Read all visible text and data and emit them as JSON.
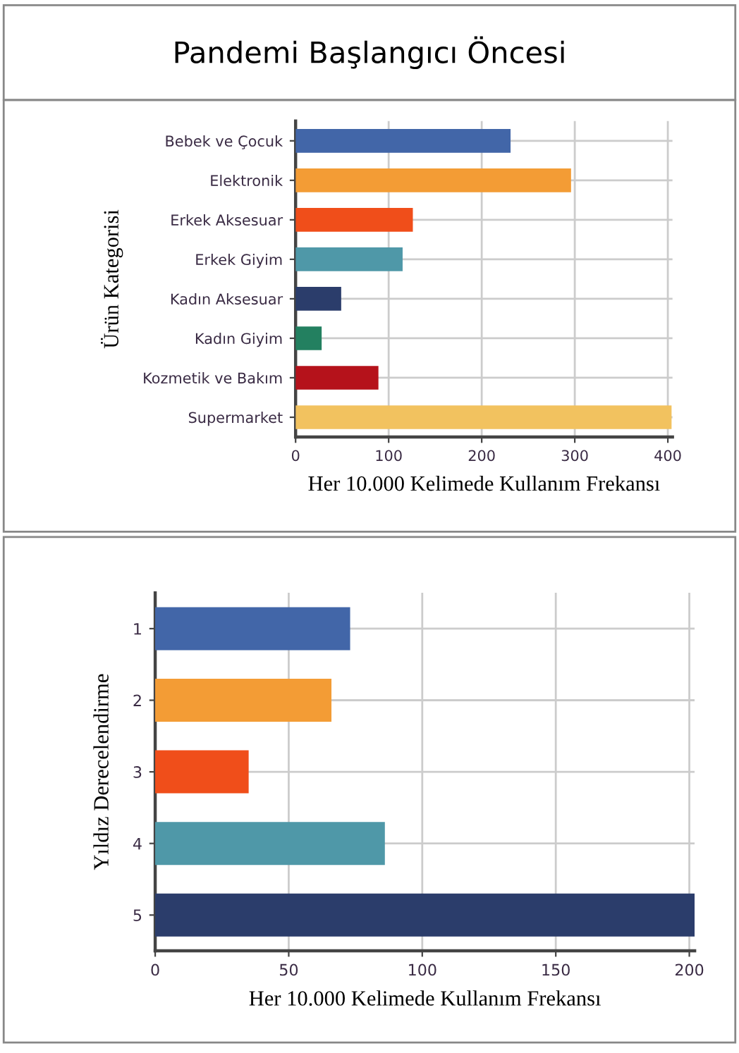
{
  "chart_data": [
    {
      "type": "bar",
      "orientation": "horizontal",
      "title": "Pandemi Başlangıcı Öncesi",
      "xlabel": "Her 10.000 Kelimede Kullanım Frekansı",
      "ylabel": "Ürün Kategorisi",
      "categories": [
        "Bebek ve Çocuk",
        "Elektronik",
        "Erkek Aksesuar",
        "Erkek Giyim",
        "Kadın Aksesuar",
        "Kadın Giyim",
        "Kozmetik ve Bakım",
        "Supermarket"
      ],
      "values": [
        231,
        296,
        126,
        115,
        49,
        28,
        89,
        404
      ],
      "colors": [
        "#4266a8",
        "#f39c35",
        "#f04e1a",
        "#4f98a8",
        "#2b3d6b",
        "#238060",
        "#b5121b",
        "#f2c25f"
      ],
      "xlim": [
        0,
        405
      ],
      "xticks": [
        0,
        100,
        200,
        300,
        400
      ],
      "grid": true
    },
    {
      "type": "bar",
      "orientation": "horizontal",
      "xlabel": "Her 10.000 Kelimede Kullanım Frekansı",
      "ylabel": "Yıldız Derecelendirme",
      "categories": [
        "1",
        "2",
        "3",
        "4",
        "5"
      ],
      "values": [
        73,
        66,
        35,
        86,
        202
      ],
      "colors": [
        "#4266a8",
        "#f39c35",
        "#f04e1a",
        "#4f98a8",
        "#2b3d6b"
      ],
      "xlim": [
        0,
        202
      ],
      "xticks": [
        0,
        50,
        100,
        150,
        200
      ],
      "grid": true
    }
  ]
}
